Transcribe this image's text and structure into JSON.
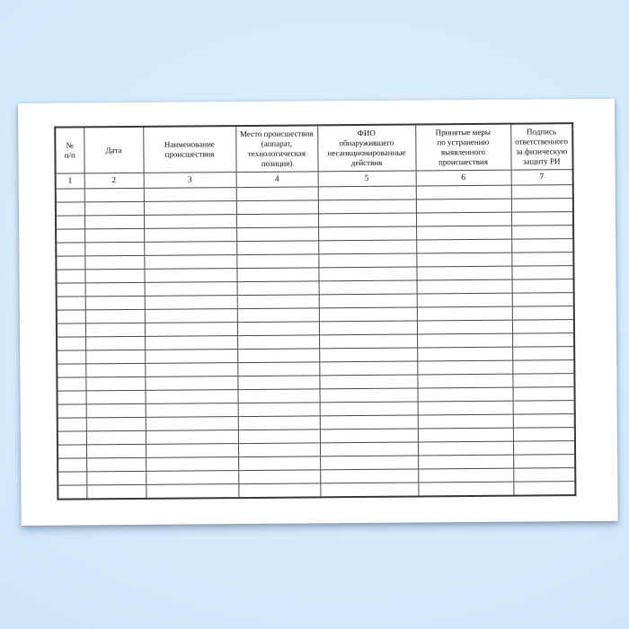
{
  "document": {
    "kind": "scanned-log-sheet",
    "table": {
      "columns": [
        {
          "label": "№\nп/п",
          "num": "1"
        },
        {
          "label": "Дата",
          "num": "2"
        },
        {
          "label": "Наименование\nпроисшествия",
          "num": "3"
        },
        {
          "label": "Место происшествия\n(аппарат,\nтехнологическая\nпозиция)",
          "num": "4"
        },
        {
          "label": "ФИО\nобнаружившего\nнесанкционированные\nдействия",
          "num": "5"
        },
        {
          "label": "Принятые меры\nпо устранению\nвыявленного\nпроисшествия",
          "num": "6"
        },
        {
          "label": "Подпись\nответственного\nза физическую\nзащиту РИ",
          "num": "7"
        }
      ],
      "empty_row_count": 23
    },
    "colors": {
      "desk_light": "#deeffd",
      "desk_mid": "#d4e9fc",
      "desk_dark": "#c9def4",
      "page_bg": "#ffffff",
      "border": "#4a4a4a",
      "border_strong": "#383838",
      "ink": "#0d0d0d"
    }
  }
}
